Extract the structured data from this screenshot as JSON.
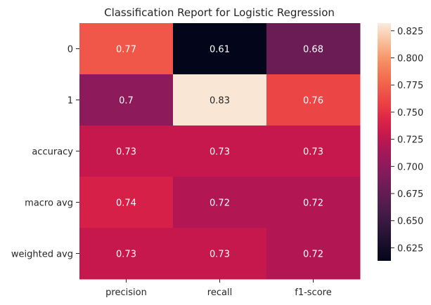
{
  "chart_data": {
    "type": "heatmap",
    "title": "Classification Report for Logistic Regression",
    "xlabel": "",
    "ylabel": "",
    "columns": [
      "precision",
      "recall",
      "f1-score"
    ],
    "rows": [
      "0",
      "1",
      "accuracy",
      "macro avg",
      "weighted avg"
    ],
    "values": [
      [
        0.77,
        0.61,
        0.68
      ],
      [
        0.7,
        0.83,
        0.76
      ],
      [
        0.73,
        0.73,
        0.73
      ],
      [
        0.74,
        0.72,
        0.72
      ],
      [
        0.73,
        0.73,
        0.72
      ]
    ],
    "annotations": [
      [
        "0.77",
        "0.61",
        "0.68"
      ],
      [
        "0.7",
        "0.83",
        "0.76"
      ],
      [
        "0.73",
        "0.73",
        "0.73"
      ],
      [
        "0.74",
        "0.72",
        "0.72"
      ],
      [
        "0.73",
        "0.73",
        "0.72"
      ]
    ],
    "colorbar": {
      "min": 0.613,
      "max": 0.832,
      "ticks": [
        "0.625",
        "0.650",
        "0.675",
        "0.700",
        "0.725",
        "0.750",
        "0.775",
        "0.800",
        "0.825"
      ]
    },
    "colormap": "rocket"
  }
}
